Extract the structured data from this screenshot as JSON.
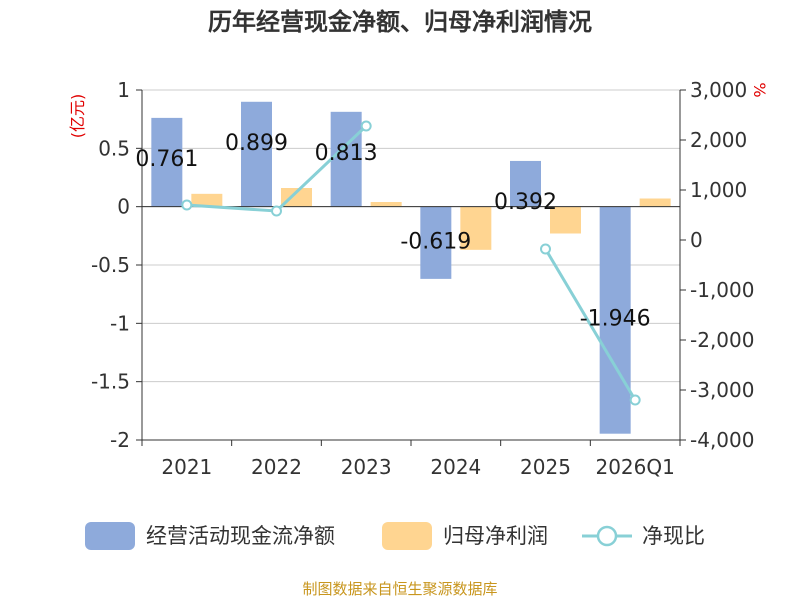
{
  "chart_data": {
    "type": "bar",
    "title": "历年经营现金净额、归母净利润情况",
    "categories": [
      "2021",
      "2022",
      "2023",
      "2024",
      "2025",
      "2026Q1"
    ],
    "left_unit": "(亿元)",
    "right_unit": "%",
    "left_ylim": [
      -2,
      1
    ],
    "left_ticks": [
      1,
      0.5,
      0,
      -0.5,
      -1,
      -1.5,
      -2
    ],
    "left_tick_labels": [
      "1",
      "0.5",
      "0",
      "-0.5",
      "-1",
      "-1.5",
      "-2"
    ],
    "right_ylim": [
      -4000,
      3000
    ],
    "right_ticks": [
      3000,
      2000,
      1000,
      0,
      -1000,
      -2000,
      -3000,
      -4000
    ],
    "right_tick_labels": [
      "3,000",
      "2,000",
      "1,000",
      "0",
      "-1,000",
      "-2,000",
      "-3,000",
      "-4,000"
    ],
    "grid": true,
    "legend_position": "bottom",
    "series": [
      {
        "name": "经营活动现金流净额",
        "kind": "bar",
        "axis": "left",
        "color": "#8eaadb",
        "values": [
          0.761,
          0.899,
          0.813,
          -0.619,
          0.392,
          -1.946
        ],
        "value_labels": [
          "0.761",
          "0.899",
          "0.813",
          "-0.619",
          "0.392",
          "-1.946"
        ]
      },
      {
        "name": "归母净利润",
        "kind": "bar",
        "axis": "left",
        "color": "#ffd591",
        "values": [
          0.11,
          0.16,
          0.04,
          -0.37,
          -0.23,
          0.07
        ]
      },
      {
        "name": "净现比",
        "kind": "line",
        "axis": "right",
        "color": "#88d0d6",
        "values": [
          700,
          580,
          2280,
          null,
          -180,
          -3200
        ]
      }
    ],
    "source": "制图数据来自恒生聚源数据库"
  }
}
